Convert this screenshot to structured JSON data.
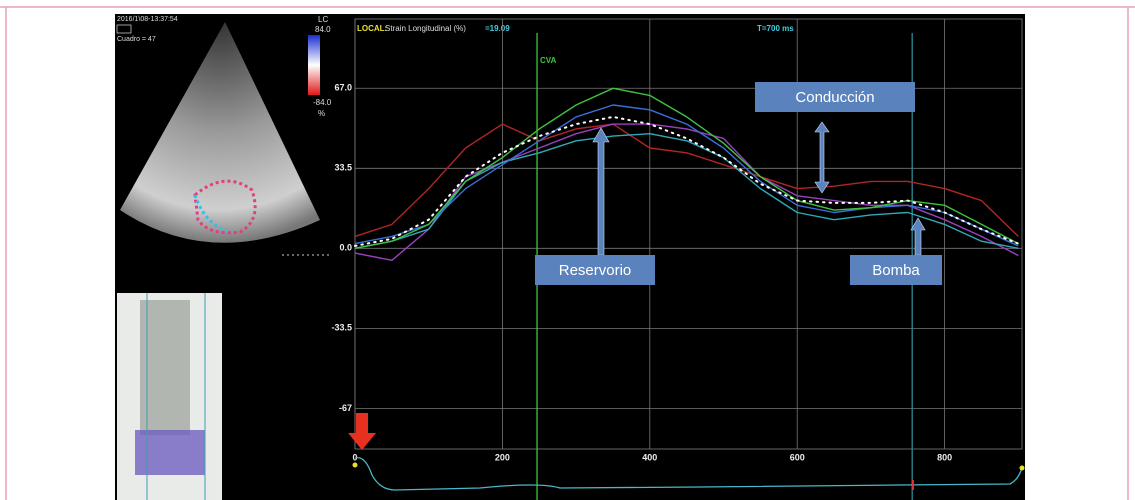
{
  "chart_data": {
    "type": "line",
    "header": {
      "mode": "LOCAL:",
      "measure": "Strain Longitudinal (%)",
      "reading": "=19.09",
      "time": "T=700 ms"
    },
    "x": [
      0,
      50,
      100,
      150,
      200,
      250,
      300,
      350,
      400,
      450,
      500,
      550,
      600,
      650,
      700,
      750,
      800,
      850,
      900
    ],
    "series": [
      {
        "color": "#b02525",
        "values": [
          5,
          10,
          25,
          42,
          52,
          45,
          50,
          52,
          42,
          40,
          35,
          30,
          25,
          26,
          28,
          28,
          25,
          20,
          5
        ]
      },
      {
        "color": "#9b3fc0",
        "values": [
          -2,
          -5,
          8,
          30,
          36,
          42,
          48,
          52,
          52,
          50,
          46,
          30,
          22,
          20,
          18,
          18,
          12,
          5,
          -3
        ]
      },
      {
        "color": "#2fa9b8",
        "values": [
          0,
          3,
          8,
          28,
          36,
          40,
          45,
          47,
          48,
          45,
          38,
          25,
          15,
          12,
          14,
          15,
          10,
          3,
          0
        ]
      },
      {
        "color": "#3c6fd8",
        "values": [
          2,
          5,
          10,
          25,
          35,
          45,
          55,
          60,
          58,
          52,
          42,
          28,
          18,
          15,
          17,
          18,
          15,
          8,
          1
        ]
      },
      {
        "color": "#42c042",
        "values": [
          0,
          3,
          10,
          28,
          38,
          50,
          60,
          67,
          64,
          55,
          44,
          30,
          20,
          16,
          17,
          20,
          18,
          10,
          2
        ]
      },
      {
        "color": "#ffffff",
        "dotted": true,
        "values": [
          1,
          4,
          12,
          30,
          40,
          47,
          52,
          55,
          52,
          46,
          38,
          27,
          20,
          19,
          19,
          20,
          15,
          8,
          2
        ]
      }
    ],
    "xlim": [
      0,
      905
    ],
    "xticks": [
      0,
      200,
      400,
      600,
      800
    ],
    "ylim": [
      -84,
      96
    ],
    "yticks": [
      {
        "value": 67,
        "label": "67.0"
      },
      33.5,
      {
        "value": 0,
        "label": "0.0"
      },
      -33.5,
      -67
    ],
    "grid": true,
    "markers": [
      {
        "label": "CVA",
        "x": 247,
        "color": "#3cc83c"
      },
      {
        "x": 756,
        "color": "#2a8a9a"
      }
    ],
    "annotations": [
      "Conducción",
      "Reservorio",
      "Bomba"
    ]
  },
  "echo": {
    "timestamp": "2016/1\\08-13:37:54",
    "frame": "Cuadro = 47",
    "scale_name": "LC",
    "scale_max": "84.0",
    "scale_min": "-84.0",
    "scale_unit": "%"
  }
}
